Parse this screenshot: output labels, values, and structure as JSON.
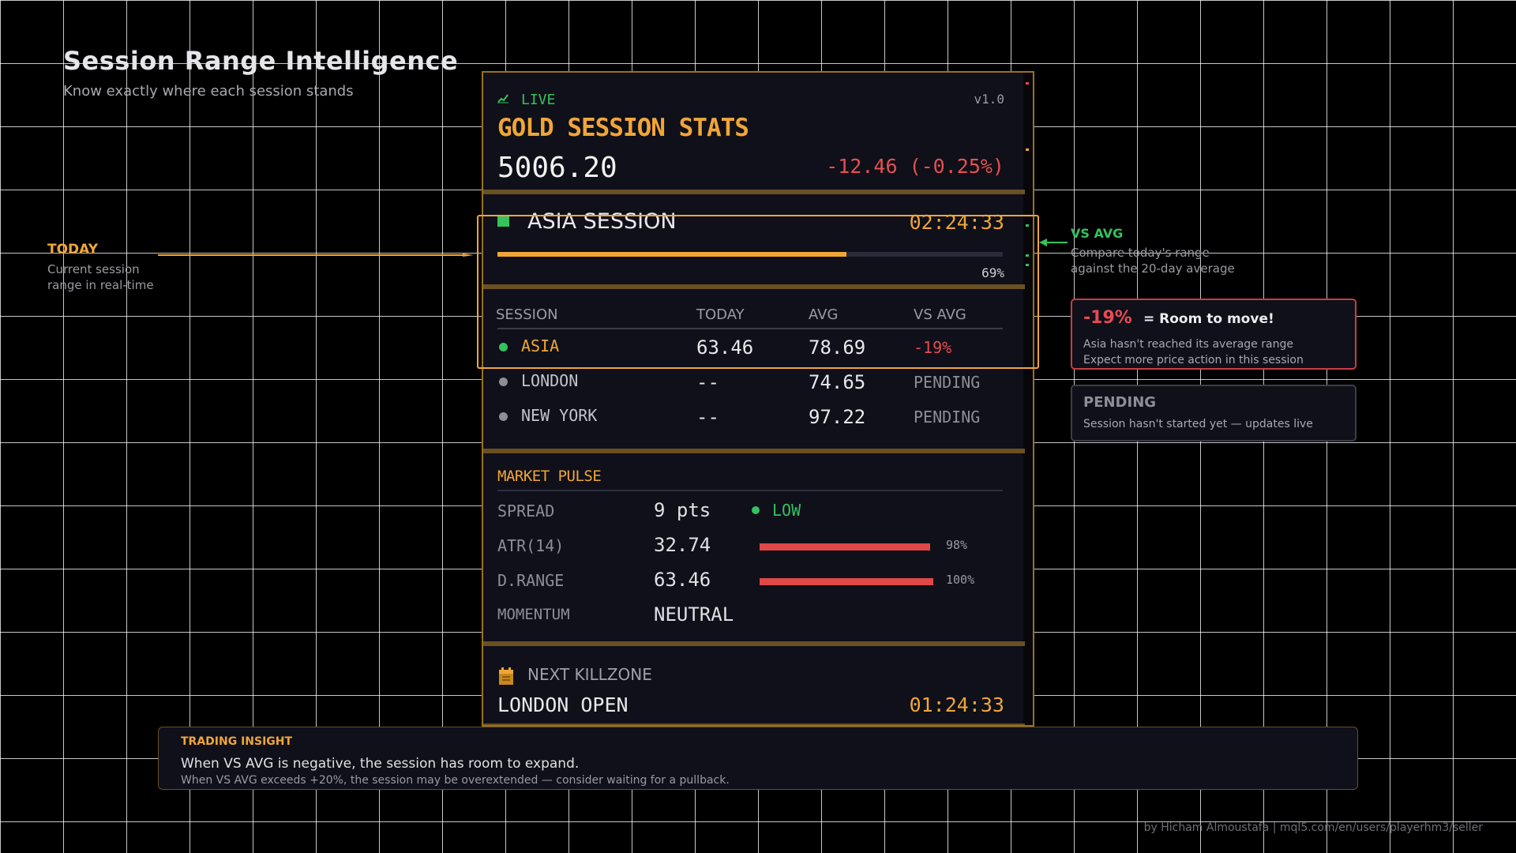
{
  "header": {
    "title": "Session Range Intelligence",
    "subtitle": "Know exactly where each session stands"
  },
  "panel": {
    "live_label": "LIVE",
    "version": "v1.0",
    "title": "GOLD SESSION STATS",
    "price": "5006.20",
    "change": "-12.46 (-0.25%)",
    "active_session": {
      "name": "ASIA SESSION",
      "timer": "02:24:33",
      "progress_pct": 69,
      "progress_label": "69%"
    },
    "table": {
      "headers": [
        "SESSION",
        "TODAY",
        "AVG",
        "VS AVG"
      ],
      "rows": [
        {
          "session": "ASIA",
          "today": "63.46",
          "avg": "78.69",
          "vs_avg": "-19%",
          "status": "active"
        },
        {
          "session": "LONDON",
          "today": "--",
          "avg": "74.65",
          "vs_avg": "PENDING",
          "status": "pending"
        },
        {
          "session": "NEW YORK",
          "today": "--",
          "avg": "97.22",
          "vs_avg": "PENDING",
          "status": "pending"
        }
      ]
    },
    "market_pulse": {
      "title": "MARKET PULSE",
      "spread": {
        "label": "SPREAD",
        "value": "9 pts",
        "status": "LOW"
      },
      "atr": {
        "label": "ATR(14)",
        "value": "32.74",
        "pct": 98,
        "pct_label": "98%"
      },
      "drange": {
        "label": "D.RANGE",
        "value": "63.46",
        "pct": 100,
        "pct_label": "100%"
      },
      "momentum": {
        "label": "MOMENTUM",
        "value": "NEUTRAL"
      }
    },
    "killzone": {
      "label": "NEXT KILLZONE",
      "name": "LONDON OPEN",
      "timer": "01:24:33"
    }
  },
  "annotations": {
    "today": {
      "label": "TODAY",
      "line1": "Current session",
      "line2": "range in real-time"
    },
    "vs_avg": {
      "label": "VS AVG",
      "line1": "Compare today's range",
      "line2": "against the 20-day average"
    },
    "room": {
      "pct": "-19%",
      "head": "= Room to move!",
      "line1": "Asia hasn't reached its average range",
      "line2": "Expect more price action in this session"
    },
    "pending": {
      "head": "PENDING",
      "line1": "Session hasn't started yet — updates live"
    }
  },
  "insight": {
    "label": "TRADING INSIGHT",
    "line1": "When VS AVG is negative, the session has room to expand.",
    "line2": "When VS AVG exceeds +20%, the session may be overextended — consider waiting for a pullback."
  },
  "footer": "by Hicham Almoustafa  |  mql5.com/en/users/playerhm3/seller",
  "colors": {
    "accent": "#f0a637",
    "positive": "#33c25e",
    "negative": "#e55050",
    "panel_bg": "#0f1019"
  }
}
